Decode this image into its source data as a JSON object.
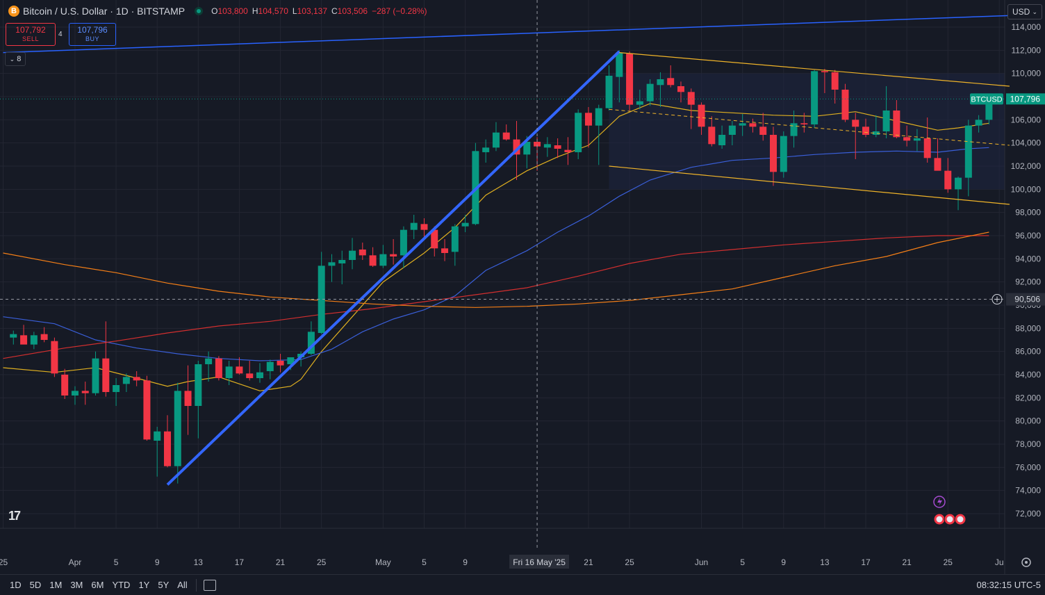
{
  "header": {
    "coin_icon": "B",
    "title": "Bitcoin / U.S. Dollar · 1D · BITSTAMP",
    "ohlc": [
      {
        "k": "O",
        "v": "103,800"
      },
      {
        "k": "H",
        "v": "104,570"
      },
      {
        "k": "L",
        "v": "103,137"
      },
      {
        "k": "C",
        "v": "103,506"
      }
    ],
    "change": "−287 (−0.28%)"
  },
  "trade": {
    "sell_price": "107,792",
    "sell_label": "SELL",
    "spread": "4",
    "buy_price": "107,796",
    "buy_label": "BUY"
  },
  "indicators_label": "8",
  "currency": "USD",
  "colors": {
    "bg": "#161a25",
    "up": "#089981",
    "down": "#f23645",
    "grid": "#232632",
    "trend": "#2962ff",
    "channel": "#f0b429",
    "ma_orange": "#f57f17",
    "ma_red": "#d32f2f",
    "ma_blue": "#3a5fd9",
    "ma_yellow": "#e0b020"
  },
  "chart_data": {
    "type": "candlestick",
    "symbol_label": "BTCUSD",
    "last_price": "107,796",
    "crosshair_price": "90,506",
    "crosshair_date": "Fri 16 May '25",
    "ylim": [
      71000,
      115500
    ],
    "y_ticks": [
      72000,
      74000,
      76000,
      78000,
      80000,
      82000,
      84000,
      86000,
      88000,
      90000,
      92000,
      94000,
      96000,
      98000,
      100000,
      102000,
      104000,
      106000,
      108000,
      110000,
      112000,
      114000
    ],
    "y_tick_labels": [
      "72,000",
      "74,000",
      "76,000",
      "78,000",
      "80,000",
      "82,000",
      "84,000",
      "86,000",
      "88,000",
      "90,000",
      "92,000",
      "94,000",
      "96,000",
      "98,000",
      "100,000",
      "102,000",
      "104,000",
      "106,000",
      "108,000",
      "110,000",
      "112,000",
      "114,000"
    ],
    "x_labels": [
      {
        "i": -1,
        "t": "25"
      },
      {
        "i": 6,
        "t": "Apr"
      },
      {
        "i": 10,
        "t": "5"
      },
      {
        "i": 14,
        "t": "9"
      },
      {
        "i": 18,
        "t": "13"
      },
      {
        "i": 22,
        "t": "17"
      },
      {
        "i": 26,
        "t": "21"
      },
      {
        "i": 30,
        "t": "25"
      },
      {
        "i": 36,
        "t": "May"
      },
      {
        "i": 40,
        "t": "5"
      },
      {
        "i": 44,
        "t": "9"
      },
      {
        "i": 56,
        "t": "21"
      },
      {
        "i": 60,
        "t": "25"
      },
      {
        "i": 67,
        "t": "Jun"
      },
      {
        "i": 71,
        "t": "5"
      },
      {
        "i": 75,
        "t": "9"
      },
      {
        "i": 79,
        "t": "13"
      },
      {
        "i": 83,
        "t": "17"
      },
      {
        "i": 87,
        "t": "21"
      },
      {
        "i": 91,
        "t": "25"
      },
      {
        "i": 96,
        "t": "Ju"
      }
    ],
    "x_first_index": -1,
    "x_last_index": 97,
    "crosshair_index": 51,
    "candles": [
      [
        0,
        87200,
        87800,
        86600,
        87500
      ],
      [
        1,
        87400,
        88300,
        86900,
        86600
      ],
      [
        2,
        86600,
        87700,
        86200,
        87400
      ],
      [
        3,
        87500,
        88100,
        86800,
        87000
      ],
      [
        4,
        86900,
        87200,
        83800,
        84100
      ],
      [
        5,
        84000,
        84500,
        81900,
        82200
      ],
      [
        6,
        82200,
        83000,
        81400,
        82600
      ],
      [
        7,
        82600,
        83400,
        81400,
        82400
      ],
      [
        8,
        82400,
        86000,
        82200,
        85400
      ],
      [
        9,
        85400,
        88600,
        82100,
        82500
      ],
      [
        10,
        82500,
        83700,
        81300,
        83100
      ],
      [
        11,
        83200,
        84100,
        82500,
        83800
      ],
      [
        12,
        83800,
        84300,
        83000,
        83500
      ],
      [
        13,
        83500,
        83900,
        78300,
        78400
      ],
      [
        14,
        78300,
        79500,
        75200,
        79100
      ],
      [
        15,
        79100,
        80500,
        76000,
        76100
      ],
      [
        16,
        76100,
        83300,
        74600,
        82600
      ],
      [
        17,
        82600,
        84800,
        78800,
        81300
      ],
      [
        18,
        81300,
        85200,
        78500,
        84900
      ],
      [
        19,
        84900,
        86000,
        83400,
        85400
      ],
      [
        20,
        85400,
        85600,
        83500,
        83700
      ],
      [
        21,
        83700,
        85200,
        83100,
        84700
      ],
      [
        22,
        84700,
        85500,
        84000,
        84100
      ],
      [
        23,
        84100,
        85200,
        83500,
        83700
      ],
      [
        24,
        83700,
        85000,
        83300,
        84200
      ],
      [
        25,
        84300,
        85300,
        83600,
        85100
      ],
      [
        26,
        85200,
        85800,
        84200,
        84800
      ],
      [
        27,
        84900,
        85500,
        84400,
        85500
      ],
      [
        28,
        85500,
        86000,
        84700,
        85800
      ],
      [
        29,
        85800,
        88600,
        85700,
        87700
      ],
      [
        30,
        87600,
        94600,
        87500,
        93400
      ],
      [
        31,
        93400,
        94400,
        92000,
        93700
      ],
      [
        32,
        93600,
        94700,
        91800,
        93900
      ],
      [
        33,
        93900,
        95800,
        93100,
        94700
      ],
      [
        34,
        94800,
        95400,
        93900,
        94300
      ],
      [
        35,
        94300,
        95000,
        93300,
        93400
      ],
      [
        36,
        93400,
        95200,
        93200,
        94400
      ],
      [
        37,
        94400,
        95700,
        93500,
        94200
      ],
      [
        38,
        94300,
        96800,
        93200,
        96500
      ],
      [
        39,
        96500,
        97800,
        95700,
        97100
      ],
      [
        40,
        97000,
        97500,
        95700,
        96500
      ],
      [
        41,
        96500,
        96800,
        94200,
        94900
      ],
      [
        42,
        94900,
        95700,
        93800,
        94500
      ],
      [
        43,
        94600,
        97000,
        93400,
        96800
      ],
      [
        44,
        96800,
        97800,
        96300,
        97100
      ],
      [
        45,
        97000,
        104000,
        96900,
        103300
      ],
      [
        46,
        103200,
        104300,
        102300,
        103600
      ],
      [
        47,
        103600,
        105800,
        103300,
        104900
      ],
      [
        48,
        104900,
        105600,
        104200,
        104300
      ],
      [
        49,
        104300,
        105900,
        100800,
        103000
      ],
      [
        50,
        103000,
        104600,
        101800,
        104100
      ],
      [
        51,
        104100,
        104500,
        101600,
        103700
      ],
      [
        52,
        103600,
        104500,
        102800,
        103900
      ],
      [
        53,
        103800,
        104400,
        102700,
        103500
      ],
      [
        54,
        103400,
        104500,
        102100,
        103200
      ],
      [
        55,
        103200,
        106900,
        102600,
        106600
      ],
      [
        56,
        106600,
        107100,
        103600,
        105500
      ],
      [
        57,
        105500,
        107300,
        102100,
        107000
      ],
      [
        58,
        107000,
        110700,
        106800,
        109800
      ],
      [
        59,
        109700,
        112000,
        107500,
        111800
      ],
      [
        60,
        111700,
        111900,
        106800,
        107300
      ],
      [
        61,
        107300,
        108600,
        106900,
        107600
      ],
      [
        62,
        107600,
        109500,
        107200,
        109100
      ],
      [
        63,
        109000,
        110100,
        107100,
        109500
      ],
      [
        64,
        109600,
        110700,
        108800,
        109000
      ],
      [
        65,
        108900,
        109300,
        107500,
        108400
      ],
      [
        66,
        108400,
        108700,
        105200,
        107300
      ],
      [
        67,
        107300,
        107500,
        104700,
        105400
      ],
      [
        68,
        105400,
        106300,
        103700,
        103900
      ],
      [
        69,
        103800,
        105500,
        103500,
        104700
      ],
      [
        70,
        104700,
        105900,
        103800,
        105500
      ],
      [
        71,
        105500,
        106500,
        104600,
        105700
      ],
      [
        72,
        105700,
        106100,
        104900,
        105400
      ],
      [
        73,
        105400,
        106600,
        104200,
        104700
      ],
      [
        74,
        104700,
        105400,
        100300,
        101500
      ],
      [
        75,
        101500,
        105000,
        101000,
        104600
      ],
      [
        76,
        104600,
        106800,
        103600,
        105700
      ],
      [
        77,
        105700,
        106600,
        104900,
        105600
      ],
      [
        78,
        105600,
        110300,
        105300,
        110200
      ],
      [
        79,
        110200,
        110400,
        108300,
        110100
      ],
      [
        80,
        110100,
        110300,
        107400,
        108600
      ],
      [
        81,
        108600,
        109100,
        105800,
        106000
      ],
      [
        82,
        106000,
        106600,
        102600,
        105400
      ],
      [
        83,
        105400,
        106100,
        104500,
        104700
      ],
      [
        84,
        104700,
        106400,
        104500,
        105000
      ],
      [
        85,
        105000,
        108900,
        104400,
        106800
      ],
      [
        86,
        106800,
        107700,
        104400,
        104500
      ],
      [
        87,
        104500,
        105500,
        103700,
        104200
      ],
      [
        88,
        104200,
        105200,
        103300,
        104400
      ],
      [
        89,
        104400,
        106200,
        102300,
        102700
      ],
      [
        90,
        102700,
        104400,
        101700,
        101600
      ],
      [
        91,
        101600,
        102700,
        99700,
        100000
      ],
      [
        92,
        100000,
        101100,
        98200,
        101000
      ],
      [
        93,
        101000,
        106000,
        99400,
        105500
      ],
      [
        94,
        105500,
        106400,
        104900,
        106000
      ],
      [
        95,
        106000,
        107900,
        105600,
        107800
      ]
    ],
    "moving_averages": [
      {
        "color": "#e0b020",
        "points": [
          [
            -1,
            84600
          ],
          [
            4,
            84200
          ],
          [
            8,
            84600
          ],
          [
            12,
            83700
          ],
          [
            15,
            83000
          ],
          [
            17,
            83400
          ],
          [
            20,
            83800
          ],
          [
            24,
            82600
          ],
          [
            27,
            83000
          ],
          [
            28,
            83600
          ],
          [
            30,
            86000
          ],
          [
            33,
            89000
          ],
          [
            36,
            92000
          ],
          [
            40,
            94500
          ],
          [
            43,
            96700
          ],
          [
            46,
            99500
          ],
          [
            50,
            101600
          ],
          [
            53,
            102800
          ],
          [
            56,
            103800
          ],
          [
            59,
            106300
          ],
          [
            62,
            107400
          ],
          [
            66,
            106800
          ],
          [
            70,
            106600
          ],
          [
            74,
            106400
          ],
          [
            78,
            106300
          ],
          [
            82,
            106700
          ],
          [
            86,
            105900
          ],
          [
            90,
            105100
          ],
          [
            92,
            105300
          ],
          [
            95,
            105700
          ]
        ]
      },
      {
        "color": "#3a5fd9",
        "points": [
          [
            -1,
            89000
          ],
          [
            4,
            88400
          ],
          [
            8,
            87000
          ],
          [
            12,
            86300
          ],
          [
            16,
            85800
          ],
          [
            20,
            85400
          ],
          [
            24,
            85200
          ],
          [
            28,
            85300
          ],
          [
            31,
            86200
          ],
          [
            34,
            87700
          ],
          [
            37,
            88800
          ],
          [
            40,
            89600
          ],
          [
            43,
            90800
          ],
          [
            46,
            93000
          ],
          [
            50,
            94700
          ],
          [
            53,
            96300
          ],
          [
            56,
            97700
          ],
          [
            59,
            99400
          ],
          [
            62,
            100800
          ],
          [
            66,
            101900
          ],
          [
            70,
            102500
          ],
          [
            74,
            102700
          ],
          [
            78,
            103000
          ],
          [
            82,
            103200
          ],
          [
            86,
            103300
          ],
          [
            90,
            103200
          ],
          [
            93,
            103500
          ],
          [
            95,
            103600
          ]
        ]
      },
      {
        "color": "#d32f2f",
        "points": [
          [
            -1,
            85400
          ],
          [
            5,
            86300
          ],
          [
            10,
            86900
          ],
          [
            15,
            87600
          ],
          [
            20,
            88200
          ],
          [
            25,
            88600
          ],
          [
            30,
            89200
          ],
          [
            35,
            89700
          ],
          [
            40,
            90300
          ],
          [
            45,
            90900
          ],
          [
            50,
            91500
          ],
          [
            55,
            92500
          ],
          [
            60,
            93600
          ],
          [
            65,
            94400
          ],
          [
            70,
            94800
          ],
          [
            75,
            95200
          ],
          [
            80,
            95500
          ],
          [
            85,
            95800
          ],
          [
            90,
            96000
          ],
          [
            95,
            96000
          ]
        ]
      },
      {
        "color": "#f57f17",
        "points": [
          [
            -1,
            94500
          ],
          [
            5,
            93500
          ],
          [
            10,
            92800
          ],
          [
            15,
            91900
          ],
          [
            20,
            91200
          ],
          [
            25,
            90700
          ],
          [
            30,
            90400
          ],
          [
            35,
            90100
          ],
          [
            40,
            89900
          ],
          [
            45,
            89800
          ],
          [
            50,
            89900
          ],
          [
            55,
            90100
          ],
          [
            60,
            90400
          ],
          [
            65,
            90900
          ],
          [
            70,
            91400
          ],
          [
            75,
            92400
          ],
          [
            80,
            93400
          ],
          [
            85,
            94200
          ],
          [
            90,
            95400
          ],
          [
            95,
            96300
          ]
        ]
      }
    ],
    "trendlines": [
      {
        "color": "#2962ff",
        "width": 1.5,
        "from": [
          -1,
          111800
        ],
        "to": [
          97,
          115000
        ]
      },
      {
        "color": "#3366ff",
        "width": 4,
        "from": [
          15,
          74500
        ],
        "to": [
          59,
          111900
        ]
      },
      {
        "color": "#f0b429",
        "width": 1.2,
        "from": [
          59,
          111800
        ],
        "to": [
          97,
          108900
        ]
      },
      {
        "color": "#f0b429",
        "width": 1.2,
        "from": [
          58,
          102000
        ],
        "to": [
          97,
          98700
        ]
      },
      {
        "color": "#f0b429",
        "width": 1,
        "dash": true,
        "from": [
          58,
          106900
        ],
        "to": [
          97,
          103800
        ]
      }
    ]
  },
  "bottom": {
    "ranges": [
      "1D",
      "5D",
      "1M",
      "3M",
      "6M",
      "YTD",
      "1Y",
      "5Y",
      "All"
    ],
    "clock": "08:32:15 UTC-5"
  },
  "logo": "17"
}
